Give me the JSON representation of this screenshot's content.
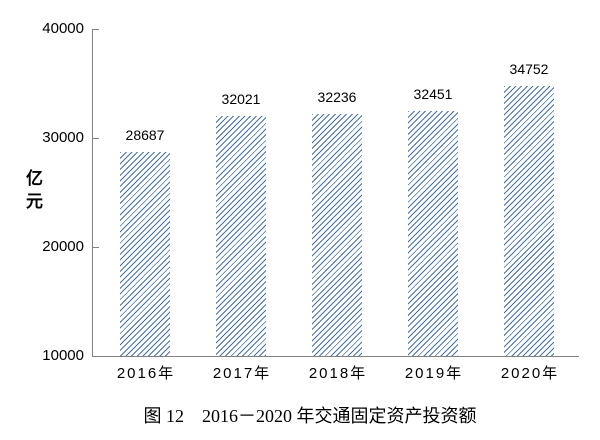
{
  "figure": {
    "caption": "图 12　2016－2020 年交通固定资产投资额",
    "y_axis_title": "亿元"
  },
  "chart_data": {
    "type": "bar",
    "title": "图 12　2016－2020 年交通固定资产投资额",
    "categories": [
      "2016年",
      "2017年",
      "2018年",
      "2019年",
      "2020年"
    ],
    "values": [
      28687,
      32021,
      32236,
      32451,
      34752
    ],
    "data_labels": [
      "28687",
      "32021",
      "32236",
      "32451",
      "34752"
    ],
    "xlabel": "",
    "ylabel": "亿元",
    "ylim": [
      10000,
      40000
    ],
    "yticks": [
      10000,
      20000,
      30000,
      40000
    ],
    "grid": false,
    "legend": "none",
    "bar_fill": {
      "pattern": "diagonal-hatch",
      "hatch_direction": "forward-slash",
      "color": "#4472a8",
      "background": "#ffffff"
    },
    "axis_color": "#808080",
    "text_color": "#000000"
  }
}
